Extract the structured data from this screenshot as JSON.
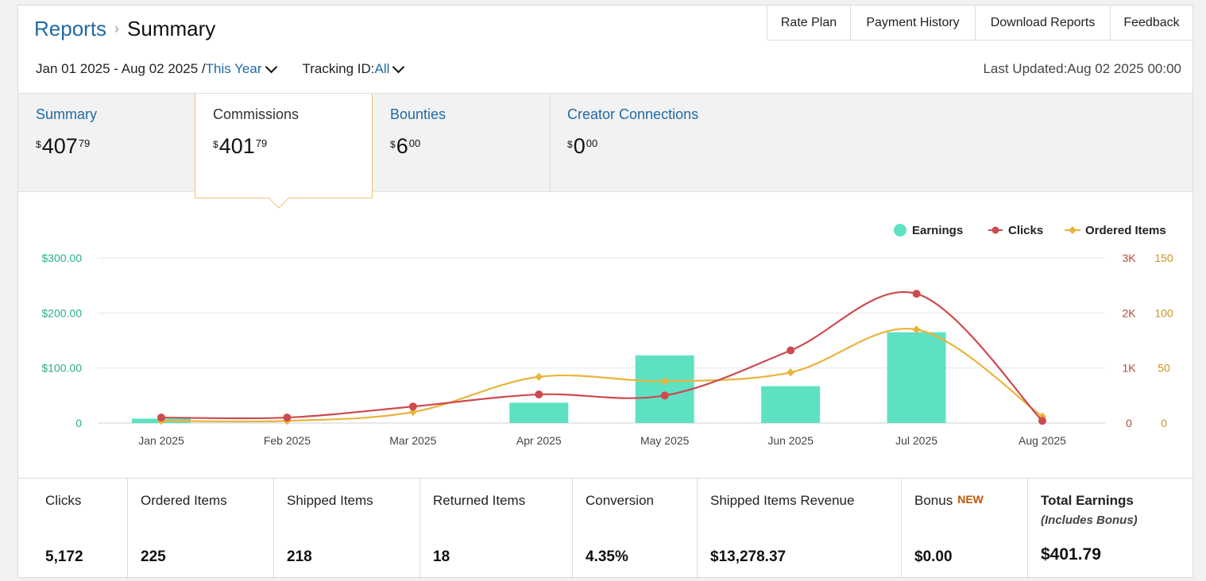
{
  "breadcrumb": {
    "root": "Reports",
    "separator": "›",
    "current": "Summary"
  },
  "top_nav": [
    "Rate Plan",
    "Payment History",
    "Download Reports",
    "Feedback"
  ],
  "filters": {
    "date_range": "Jan 01 2025 - Aug 02 2025 /",
    "period": "This Year",
    "tracking_label": "Tracking ID:",
    "tracking_value": "All"
  },
  "last_updated": "Last Updated:Aug 02 2025 00:00",
  "tabs": [
    {
      "label": "Summary",
      "currency": "$",
      "whole": "407",
      "cents": "79"
    },
    {
      "label": "Commissions",
      "currency": "$",
      "whole": "401",
      "cents": "79",
      "active": true
    },
    {
      "label": "Bounties",
      "currency": "$",
      "whole": "6",
      "cents": "00"
    },
    {
      "label": "Creator Connections",
      "currency": "$",
      "whole": "0",
      "cents": "00"
    }
  ],
  "chart_data": {
    "type": "bar+line",
    "categories": [
      "Jan 2025",
      "Feb 2025",
      "Mar 2025",
      "Apr 2025",
      "May 2025",
      "Jun 2025",
      "Jul 2025",
      "Aug 2025"
    ],
    "series": [
      {
        "name": "Earnings",
        "type": "bar",
        "axis": "left",
        "color": "#5ee1c3",
        "values": [
          8,
          0,
          0,
          37,
          123,
          67,
          165,
          0
        ]
      },
      {
        "name": "Clicks",
        "type": "line",
        "axis": "right1",
        "color": "#cd4a4e",
        "values": [
          100,
          100,
          300,
          520,
          500,
          1320,
          2350,
          40
        ]
      },
      {
        "name": "Ordered Items",
        "type": "line",
        "axis": "right2",
        "color": "#e8b43a",
        "values": [
          2,
          2,
          10,
          42,
          38,
          46,
          85,
          6
        ]
      }
    ],
    "left_axis": {
      "ticks": [
        "0",
        "$100.00",
        "$200.00",
        "$300.00"
      ],
      "range": [
        0,
        300
      ],
      "color": "#2aaf8e"
    },
    "right_axis_1": {
      "ticks": [
        "0",
        "1K",
        "2K",
        "3K"
      ],
      "range": [
        0,
        3000
      ],
      "color": "#b24a3a"
    },
    "right_axis_2": {
      "ticks": [
        "0",
        "50",
        "100",
        "150"
      ],
      "range": [
        0,
        150
      ],
      "color": "#c9961f"
    },
    "legend_position": "top-right",
    "grid": true
  },
  "stats": [
    {
      "label": "Clicks",
      "value": "5,172"
    },
    {
      "label": "Ordered Items",
      "value": "225"
    },
    {
      "label": "Shipped Items",
      "value": "218"
    },
    {
      "label": "Returned Items",
      "value": "18"
    },
    {
      "label": "Conversion",
      "value": "4.35%"
    },
    {
      "label": "Shipped Items Revenue",
      "value": "$13,278.37"
    },
    {
      "label": "Bonus",
      "badge": "NEW",
      "value": "$0.00"
    },
    {
      "label": "Total Earnings",
      "sublabel": "(Includes Bonus)",
      "value": "$401.79"
    }
  ]
}
